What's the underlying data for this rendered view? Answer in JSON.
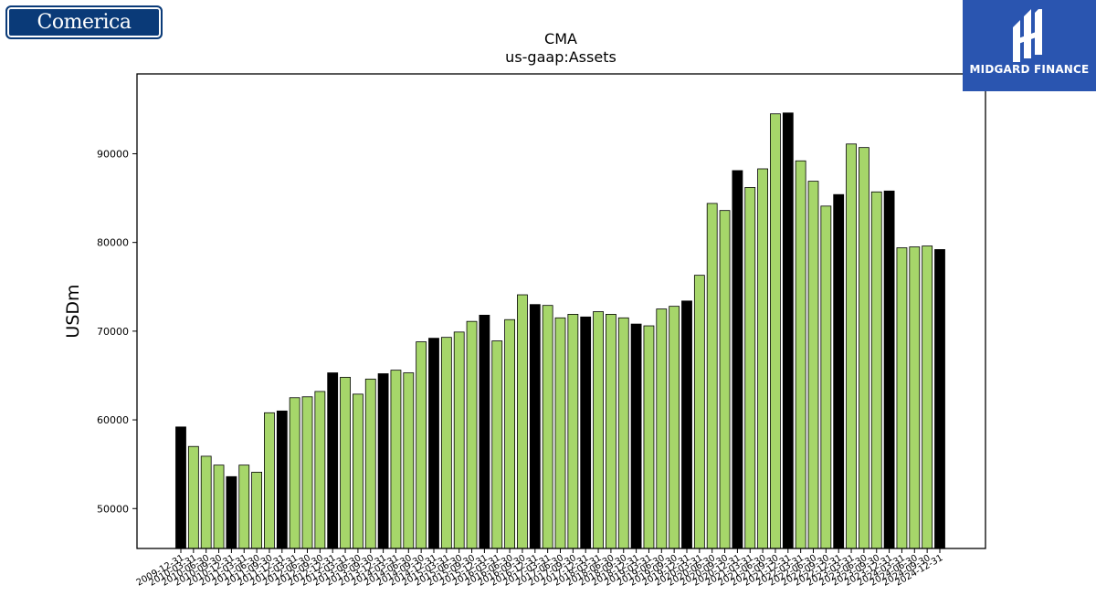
{
  "logos": {
    "left_text": "Comerica",
    "right_text": "MIDGARD FINANCE"
  },
  "colors": {
    "bar_year_end": "#000000",
    "bar_other": "#a6d66a",
    "bar_edge": "#000000"
  },
  "chart_data": {
    "type": "bar",
    "title": "CMA",
    "subtitle": "us-gaap:Assets",
    "xlabel": "",
    "ylabel": "USDm",
    "ylim": [
      45500,
      99000
    ],
    "yticks": [
      50000,
      60000,
      70000,
      80000,
      90000
    ],
    "grid": false,
    "legend": "none",
    "categories": [
      "2009-12-31",
      "2010-03-31",
      "2010-06-30",
      "2010-09-30",
      "2010-12-31",
      "2011-03-31",
      "2011-06-30",
      "2011-09-30",
      "2011-12-31",
      "2012-03-31",
      "2012-06-30",
      "2012-09-30",
      "2012-12-31",
      "2013-03-31",
      "2013-06-30",
      "2013-09-30",
      "2013-12-31",
      "2014-03-31",
      "2014-06-30",
      "2014-09-30",
      "2014-12-31",
      "2015-03-31",
      "2015-06-30",
      "2015-09-30",
      "2015-12-31",
      "2016-03-31",
      "2016-06-30",
      "2016-09-30",
      "2016-12-31",
      "2017-03-31",
      "2017-06-30",
      "2017-09-30",
      "2017-12-31",
      "2018-03-31",
      "2018-06-30",
      "2018-09-30",
      "2018-12-31",
      "2019-03-31",
      "2019-06-30",
      "2019-09-30",
      "2019-12-31",
      "2020-03-31",
      "2020-06-30",
      "2020-09-30",
      "2020-12-31",
      "2021-03-31",
      "2021-06-30",
      "2021-09-30",
      "2021-12-31",
      "2022-03-31",
      "2022-06-30",
      "2022-09-30",
      "2022-12-31",
      "2023-03-31",
      "2023-06-30",
      "2023-09-30",
      "2023-12-31",
      "2024-03-31",
      "2024-06-30",
      "2024-09-30",
      "2024-12-31"
    ],
    "values": [
      59200,
      57000,
      55900,
      54900,
      53600,
      54900,
      54100,
      60800,
      61000,
      62500,
      62600,
      63200,
      65300,
      64800,
      62900,
      64600,
      65200,
      65600,
      65300,
      68800,
      69200,
      69300,
      69900,
      71100,
      71800,
      68900,
      71300,
      74100,
      73000,
      72900,
      71500,
      71900,
      71600,
      72200,
      71900,
      71500,
      70800,
      70600,
      72500,
      72800,
      73400,
      76300,
      84400,
      83600,
      88100,
      86200,
      88300,
      94500,
      94600,
      89200,
      86900,
      84100,
      85400,
      91100,
      90700,
      85700,
      85800,
      79400,
      79500,
      79600,
      79200
    ]
  }
}
